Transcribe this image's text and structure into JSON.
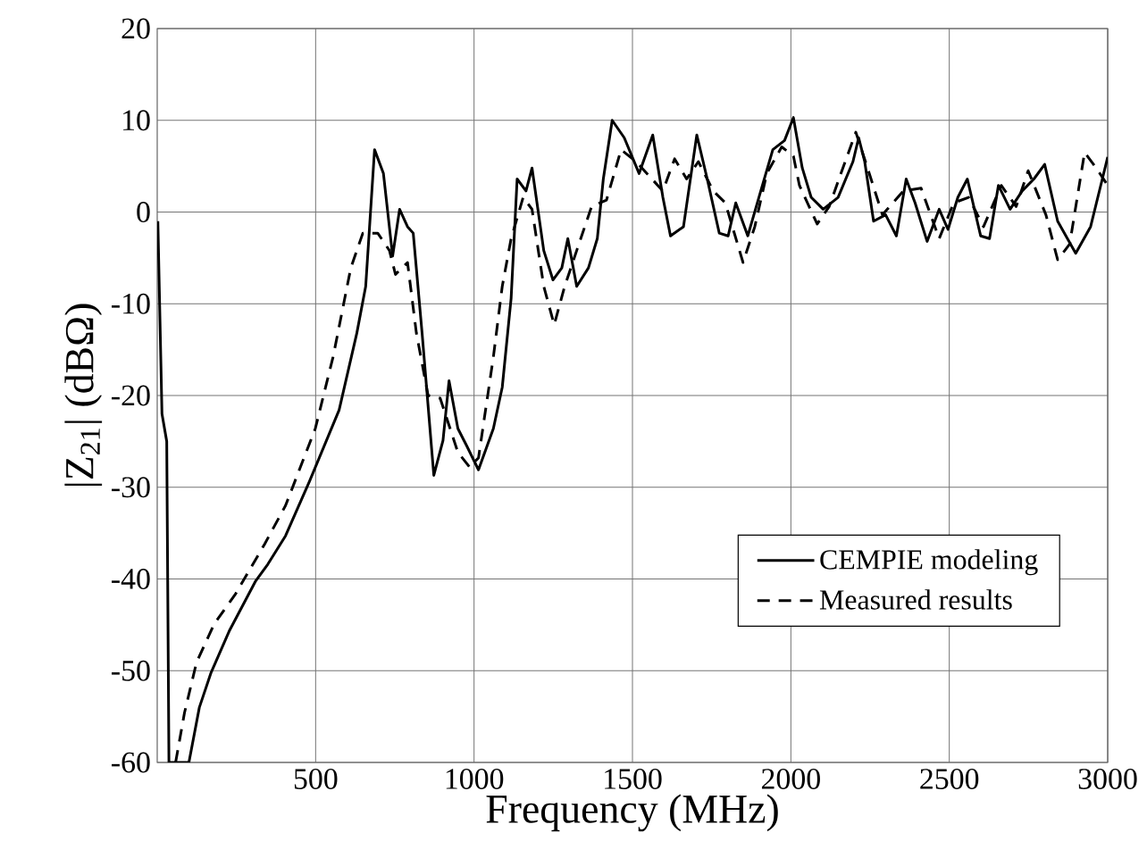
{
  "chart_data": {
    "type": "line",
    "xlabel": "Frequency (MHz)",
    "ylabel": "|Z$_{21}$| (dBΩ)",
    "xlim": [
      0,
      3000
    ],
    "ylim": [
      -60,
      20
    ],
    "xticks": [
      500,
      1000,
      1500,
      2000,
      2500,
      3000
    ],
    "yticks": [
      -60,
      -50,
      -40,
      -30,
      -20,
      -10,
      0,
      10,
      20
    ],
    "grid": true,
    "legend": "bottom right",
    "marker": "none",
    "series": [
      {
        "name": "CEMPIE modeling",
        "color": "#000000",
        "line_style": "solid",
        "x": [
          2,
          15,
          30,
          37,
          100,
          133,
          170,
          227,
          311,
          349,
          405,
          480,
          574,
          630,
          658,
          686,
          714,
          743,
          765,
          790,
          808,
          836,
          873,
          902,
          921,
          949,
          977,
          1014,
          1061,
          1089,
          1117,
          1136,
          1164,
          1183,
          1220,
          1249,
          1277,
          1296,
          1324,
          1361,
          1389,
          1408,
          1436,
          1474,
          1521,
          1564,
          1596,
          1620,
          1661,
          1703,
          1736,
          1774,
          1802,
          1826,
          1864,
          1905,
          1943,
          1980,
          2008,
          2036,
          2064,
          2102,
          2149,
          2196,
          2214,
          2233,
          2261,
          2299,
          2333,
          2364,
          2392,
          2430,
          2468,
          2496,
          2527,
          2557,
          2599,
          2627,
          2655,
          2692,
          2730,
          2767,
          2801,
          2842,
          2899,
          2946,
          2983,
          3000
        ],
        "values": [
          -1,
          -22,
          -25,
          -60,
          -60,
          -54,
          -50.2,
          -45.7,
          -40.2,
          -38.4,
          -35.3,
          -29.4,
          -21.6,
          -13.2,
          -8.1,
          6.8,
          4.2,
          -4.8,
          0.3,
          -1.6,
          -2.3,
          -13.2,
          -28.7,
          -24.9,
          -18.4,
          -23.6,
          -25.5,
          -28.1,
          -23.6,
          -19.1,
          -9.4,
          3.6,
          2.3,
          4.8,
          -4.2,
          -7.4,
          -6.1,
          -2.9,
          -8.1,
          -6.1,
          -2.9,
          3.6,
          10,
          8.1,
          4.2,
          8.4,
          1.6,
          -2.6,
          -1.6,
          8.4,
          3.6,
          -2.3,
          -2.6,
          1,
          -2.6,
          2.3,
          6.8,
          7.8,
          10.3,
          4.8,
          1.6,
          0.3,
          1.6,
          5.5,
          8.1,
          5.5,
          -1,
          -0.3,
          -2.6,
          3.6,
          1,
          -3.2,
          0.3,
          -1.9,
          1.6,
          3.6,
          -2.6,
          -2.9,
          2.9,
          0.3,
          2.3,
          3.6,
          5.2,
          -1,
          -4.5,
          -1.6,
          3.6,
          6
        ]
      },
      {
        "name": "Measured results",
        "color": "#000000",
        "line_style": "dashed",
        "x": [
          58,
          86,
          124,
          180,
          246,
          339,
          405,
          499,
          555,
          611,
          649,
          696,
          733,
          752,
          790,
          818,
          855,
          893,
          949,
          986,
          1014,
          1061,
          1089,
          1117,
          1155,
          1183,
          1220,
          1253,
          1286,
          1324,
          1371,
          1418,
          1464,
          1511,
          1596,
          1633,
          1671,
          1708,
          1755,
          1793,
          1849,
          1886,
          1924,
          1971,
          2008,
          2027,
          2083,
          2121,
          2158,
          2205,
          2242,
          2289,
          2355,
          2411,
          2468,
          2514,
          2561,
          2608,
          2664,
          2711,
          2749,
          2805,
          2842,
          2880,
          2927,
          2964,
          3000
        ],
        "values": [
          -60,
          -54.6,
          -49.1,
          -44.9,
          -41.7,
          -36.2,
          -32,
          -23.6,
          -15.8,
          -6.1,
          -2.3,
          -2.3,
          -4.2,
          -6.8,
          -5.5,
          -13.2,
          -20,
          -20.3,
          -26.2,
          -27.8,
          -26.8,
          -15.8,
          -8.1,
          -2.9,
          1.6,
          0.3,
          -8.1,
          -12.3,
          -8.1,
          -4.2,
          0.6,
          1.3,
          6.8,
          5.5,
          2.3,
          5.8,
          3.6,
          5.5,
          2.3,
          1,
          -5.5,
          -1.6,
          4.2,
          7.1,
          6.1,
          2.9,
          -1.3,
          0.6,
          4.2,
          8.7,
          4.8,
          -0.3,
          2.3,
          2.6,
          -2.9,
          1,
          1.6,
          -1.6,
          2.9,
          0.6,
          4.5,
          -0.3,
          -5.2,
          -3.5,
          6.5,
          4.8,
          2.9
        ]
      }
    ]
  }
}
